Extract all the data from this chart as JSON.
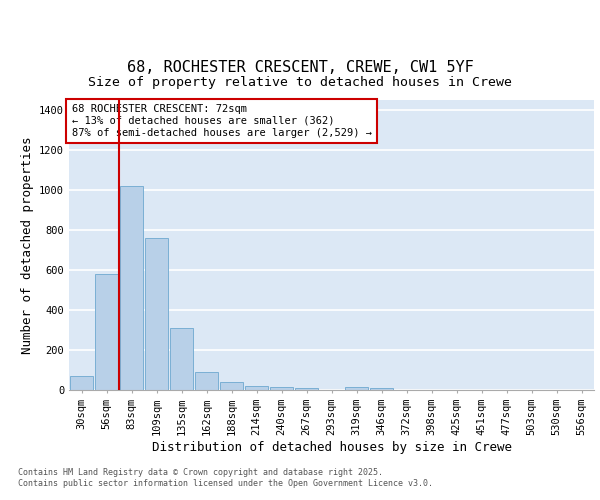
{
  "title_line1": "68, ROCHESTER CRESCENT, CREWE, CW1 5YF",
  "title_line2": "Size of property relative to detached houses in Crewe",
  "xlabel": "Distribution of detached houses by size in Crewe",
  "ylabel": "Number of detached properties",
  "categories": [
    "30sqm",
    "56sqm",
    "83sqm",
    "109sqm",
    "135sqm",
    "162sqm",
    "188sqm",
    "214sqm",
    "240sqm",
    "267sqm",
    "293sqm",
    "319sqm",
    "346sqm",
    "372sqm",
    "398sqm",
    "425sqm",
    "451sqm",
    "477sqm",
    "503sqm",
    "530sqm",
    "556sqm"
  ],
  "values": [
    70,
    580,
    1020,
    760,
    310,
    90,
    40,
    22,
    15,
    10,
    0,
    15,
    8,
    0,
    0,
    0,
    0,
    0,
    0,
    0,
    0
  ],
  "bar_color": "#b8d0e8",
  "bar_edgecolor": "#7aafd4",
  "background_color": "#dce8f5",
  "grid_color": "#ffffff",
  "vline_x": 1.5,
  "vline_color": "#cc0000",
  "ylim": [
    0,
    1450
  ],
  "yticks": [
    0,
    200,
    400,
    600,
    800,
    1000,
    1200,
    1400
  ],
  "annotation_text": "68 ROCHESTER CRESCENT: 72sqm\n← 13% of detached houses are smaller (362)\n87% of semi-detached houses are larger (2,529) →",
  "annotation_box_color": "#cc0000",
  "footer_text": "Contains HM Land Registry data © Crown copyright and database right 2025.\nContains public sector information licensed under the Open Government Licence v3.0.",
  "title_fontsize": 11,
  "subtitle_fontsize": 9.5,
  "axis_label_fontsize": 9,
  "tick_fontsize": 7.5,
  "annotation_fontsize": 7.5,
  "footer_fontsize": 6
}
